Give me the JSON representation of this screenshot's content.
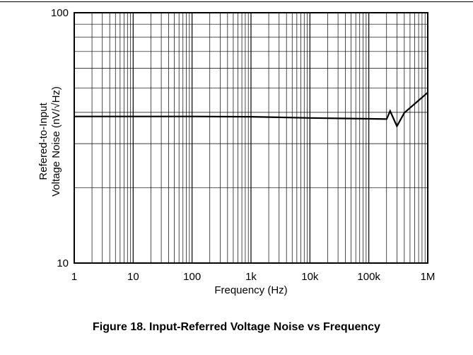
{
  "chart_data": {
    "type": "line",
    "title": "",
    "xlabel": "Frequency (Hz)",
    "ylabel_lines": [
      "Refered-to-Input",
      "Voltage Noise (nV/√Hz)"
    ],
    "x_scale": "log",
    "y_scale": "log",
    "xlim": [
      1,
      1000000
    ],
    "ylim": [
      10,
      100
    ],
    "x_ticks": [
      {
        "value": 1,
        "label": "1"
      },
      {
        "value": 10,
        "label": "10"
      },
      {
        "value": 100,
        "label": "100"
      },
      {
        "value": 1000,
        "label": "1k"
      },
      {
        "value": 10000,
        "label": "10k"
      },
      {
        "value": 100000,
        "label": "100k"
      },
      {
        "value": 1000000,
        "label": "1M"
      }
    ],
    "y_ticks": [
      {
        "value": 10,
        "label": "10"
      },
      {
        "value": 100,
        "label": "100"
      }
    ],
    "grid": true,
    "series": [
      {
        "color": "#000000",
        "points": [
          [
            1,
            38.5
          ],
          [
            10,
            38.5
          ],
          [
            100,
            38.5
          ],
          [
            1000,
            38.4
          ],
          [
            3000,
            38.2
          ],
          [
            10000,
            38.0
          ],
          [
            50000,
            37.8
          ],
          [
            200000,
            37.6
          ],
          [
            230000,
            40.5
          ],
          [
            300000,
            35.2
          ],
          [
            400000,
            39.8
          ],
          [
            1000000,
            48.0
          ]
        ]
      }
    ]
  },
  "caption": "Figure 18. Input-Referred Voltage Noise vs Frequency"
}
